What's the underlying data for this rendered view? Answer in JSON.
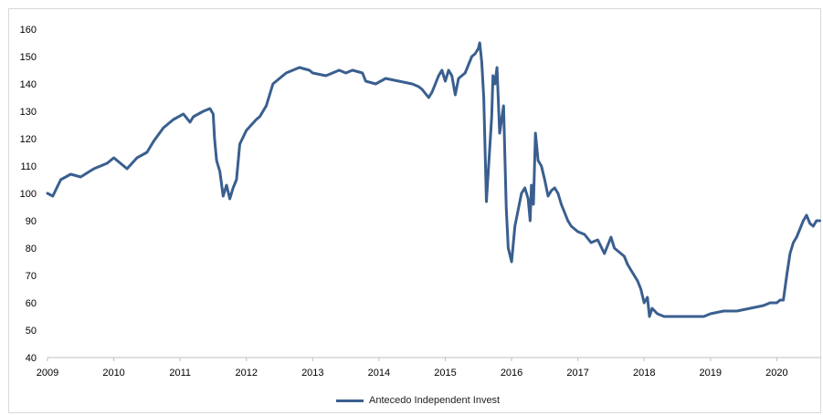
{
  "chart_data": {
    "type": "line",
    "title": "",
    "xlabel": "",
    "ylabel": "",
    "ylim": [
      40,
      160
    ],
    "xlim": [
      2009.0,
      2020.67
    ],
    "yticks": [
      "40",
      "50",
      "60",
      "70",
      "80",
      "90",
      "100",
      "110",
      "120",
      "130",
      "140",
      "150",
      "160"
    ],
    "xticks": [
      "2009",
      "2010",
      "2011",
      "2012",
      "2013",
      "2014",
      "2015",
      "2016",
      "2017",
      "2018",
      "2019",
      "2020"
    ],
    "grid": false,
    "legend_position": "bottom",
    "series": [
      {
        "name": "Antecedo Independent Invest",
        "color": "#3a5f8f",
        "x": [
          2009.0,
          2009.08,
          2009.2,
          2009.35,
          2009.5,
          2009.7,
          2009.9,
          2010.0,
          2010.05,
          2010.2,
          2010.35,
          2010.5,
          2010.6,
          2010.75,
          2010.9,
          2011.05,
          2011.15,
          2011.2,
          2011.35,
          2011.45,
          2011.5,
          2011.52,
          2011.55,
          2011.6,
          2011.65,
          2011.7,
          2011.75,
          2011.8,
          2011.85,
          2011.9,
          2012.0,
          2012.15,
          2012.2,
          2012.3,
          2012.4,
          2012.5,
          2012.6,
          2012.8,
          2012.95,
          2013.0,
          2013.2,
          2013.3,
          2013.4,
          2013.5,
          2013.6,
          2013.75,
          2013.8,
          2013.95,
          2014.1,
          2014.3,
          2014.5,
          2014.6,
          2014.65,
          2014.75,
          2014.8,
          2014.9,
          2014.95,
          2015.0,
          2015.05,
          2015.1,
          2015.15,
          2015.2,
          2015.3,
          2015.4,
          2015.45,
          2015.5,
          2015.52,
          2015.55,
          2015.58,
          2015.62,
          2015.7,
          2015.72,
          2015.75,
          2015.78,
          2015.82,
          2015.88,
          2015.92,
          2015.95,
          2016.0,
          2016.05,
          2016.1,
          2016.15,
          2016.2,
          2016.25,
          2016.28,
          2016.3,
          2016.33,
          2016.36,
          2016.4,
          2016.45,
          2016.5,
          2016.55,
          2016.6,
          2016.65,
          2016.7,
          2016.75,
          2016.8,
          2016.85,
          2016.9,
          2017.0,
          2017.1,
          2017.2,
          2017.3,
          2017.4,
          2017.5,
          2017.55,
          2017.6,
          2017.7,
          2017.75,
          2017.8,
          2017.9,
          2017.95,
          2018.0,
          2018.05,
          2018.08,
          2018.12,
          2018.2,
          2018.3,
          2018.5,
          2018.7,
          2018.9,
          2019.0,
          2019.2,
          2019.4,
          2019.6,
          2019.8,
          2019.9,
          2020.0,
          2020.05,
          2020.1,
          2020.15,
          2020.2,
          2020.25,
          2020.3,
          2020.35,
          2020.4,
          2020.45,
          2020.5,
          2020.55,
          2020.6,
          2020.65
        ],
        "values": [
          100,
          99,
          105,
          107,
          106,
          109,
          111,
          113,
          112,
          109,
          113,
          115,
          119,
          124,
          127,
          129,
          126,
          128,
          130,
          131,
          129,
          120,
          112,
          108,
          99,
          103,
          98,
          102,
          105,
          118,
          123,
          127,
          128,
          132,
          140,
          142,
          144,
          146,
          145,
          144,
          143,
          144,
          145,
          144,
          145,
          144,
          141,
          140,
          142,
          141,
          140,
          139,
          138,
          135,
          137,
          143,
          145,
          141,
          145,
          143,
          136,
          142,
          144,
          150,
          151,
          153,
          155,
          148,
          135,
          97,
          128,
          143,
          140,
          146,
          122,
          132,
          95,
          80,
          75,
          88,
          94,
          100,
          102,
          98,
          90,
          103,
          96,
          122,
          112,
          110,
          105,
          99,
          101,
          102,
          100,
          96,
          93,
          90,
          88,
          86,
          85,
          82,
          83,
          78,
          84,
          80,
          79,
          77,
          74,
          72,
          68,
          65,
          60,
          62,
          55,
          58,
          56,
          55,
          55,
          55,
          55,
          56,
          57,
          57,
          58,
          59,
          60,
          60,
          61,
          61,
          70,
          78,
          82,
          84,
          87,
          90,
          92,
          89,
          88,
          90,
          90
        ]
      }
    ]
  }
}
